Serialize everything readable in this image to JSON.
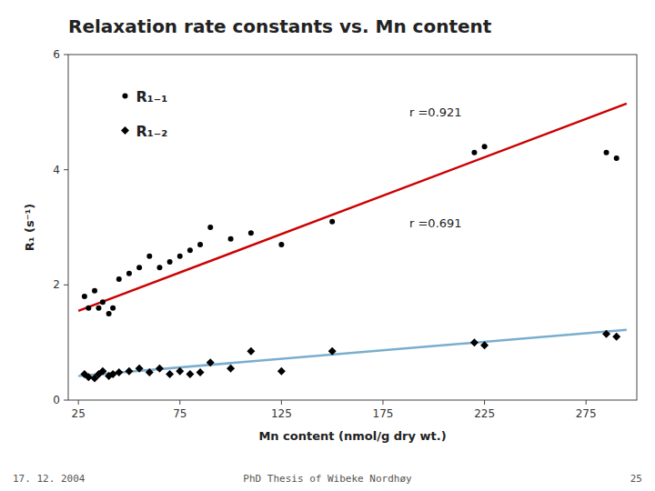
{
  "chart_data": {
    "type": "scatter",
    "title": "Relaxation rate constants vs. Mn content",
    "x_label": "Mn content (nmol/g dry wt.)",
    "y_label": "R₁ (s⁻¹)",
    "xlim": [
      20,
      300
    ],
    "ylim": [
      0,
      6
    ],
    "xticks": [
      25,
      75,
      125,
      175,
      225,
      275
    ],
    "yticks": [
      0,
      2,
      4,
      6
    ],
    "grid": false,
    "legend": "upper left",
    "annotations": [
      "r =0.921",
      "r =0.691"
    ],
    "footer": [
      "17. 12. 2004",
      "PhD Thesis of Wibeke Nordhøy",
      "25"
    ],
    "series": [
      {
        "name": "R₁₋₁",
        "type": "scatter",
        "marker": "dot",
        "color": "#000000",
        "x": [
          28,
          30,
          33,
          35,
          37,
          40,
          42,
          45,
          50,
          55,
          60,
          65,
          70,
          75,
          80,
          85,
          90,
          100,
          110,
          125,
          150,
          220,
          225,
          285,
          290
        ],
        "values": [
          1.8,
          1.6,
          1.9,
          1.6,
          1.7,
          1.5,
          1.6,
          2.1,
          2.2,
          2.3,
          2.5,
          2.3,
          2.4,
          2.5,
          2.6,
          2.7,
          3.0,
          2.8,
          2.9,
          2.7,
          3.1,
          4.3,
          4.4,
          4.3,
          4.2
        ]
      },
      {
        "name": "R₁₋₂",
        "type": "scatter",
        "marker": "diamond",
        "color": "#000000",
        "x": [
          28,
          30,
          33,
          35,
          37,
          40,
          42,
          45,
          50,
          55,
          60,
          65,
          70,
          75,
          80,
          85,
          90,
          100,
          110,
          125,
          150,
          220,
          225,
          285,
          290
        ],
        "values": [
          0.45,
          0.4,
          0.38,
          0.45,
          0.5,
          0.42,
          0.45,
          0.48,
          0.5,
          0.55,
          0.48,
          0.55,
          0.45,
          0.5,
          0.45,
          0.48,
          0.65,
          0.55,
          0.85,
          0.5,
          0.85,
          1.0,
          0.95,
          1.15,
          1.1
        ]
      },
      {
        "type": "line",
        "line_style": "solid",
        "color": "#CC0000",
        "x": [
          25,
          295
        ],
        "values": [
          1.55,
          5.15
        ]
      },
      {
        "type": "line",
        "line_style": "solid",
        "color": "#7AADCF",
        "x": [
          25,
          295
        ],
        "values": [
          0.42,
          1.22
        ]
      }
    ]
  }
}
